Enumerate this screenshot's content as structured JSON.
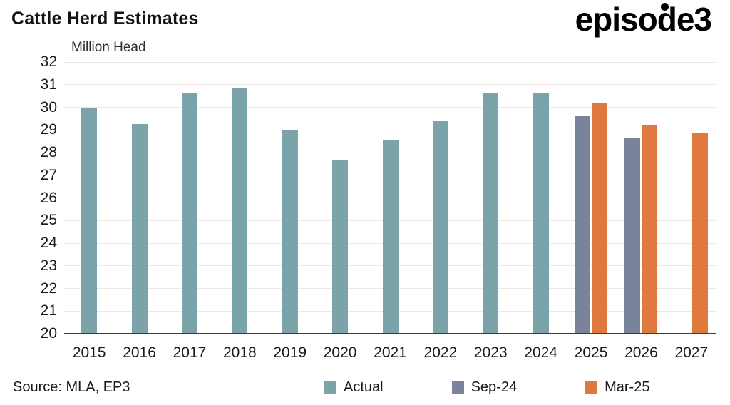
{
  "title": "Cattle Herd Estimates",
  "logo": {
    "text": "episode3"
  },
  "source": "Source: MLA, EP3",
  "chart_data": {
    "type": "bar",
    "title": "Cattle Herd Estimates",
    "ylabel": "Million Head",
    "ylim": [
      20,
      32
    ],
    "ytick_step": 1,
    "grid": "horizontal",
    "legend_position": "bottom",
    "categories": [
      "2015",
      "2016",
      "2017",
      "2018",
      "2019",
      "2020",
      "2021",
      "2022",
      "2023",
      "2024",
      "2025",
      "2026",
      "2027"
    ],
    "series": [
      {
        "name": "Actual",
        "color": "#7AA4A9",
        "values": [
          29.95,
          29.25,
          30.6,
          30.85,
          29.0,
          27.7,
          28.55,
          29.4,
          30.65,
          30.6,
          null,
          null,
          null
        ]
      },
      {
        "name": "Sep-24",
        "color": "#79839A",
        "values": [
          null,
          null,
          null,
          null,
          null,
          null,
          null,
          null,
          null,
          null,
          29.65,
          28.65,
          null
        ]
      },
      {
        "name": "Mar-25",
        "color": "#E0793E",
        "values": [
          null,
          null,
          null,
          null,
          null,
          null,
          null,
          null,
          null,
          null,
          30.2,
          29.2,
          28.85
        ]
      }
    ]
  }
}
